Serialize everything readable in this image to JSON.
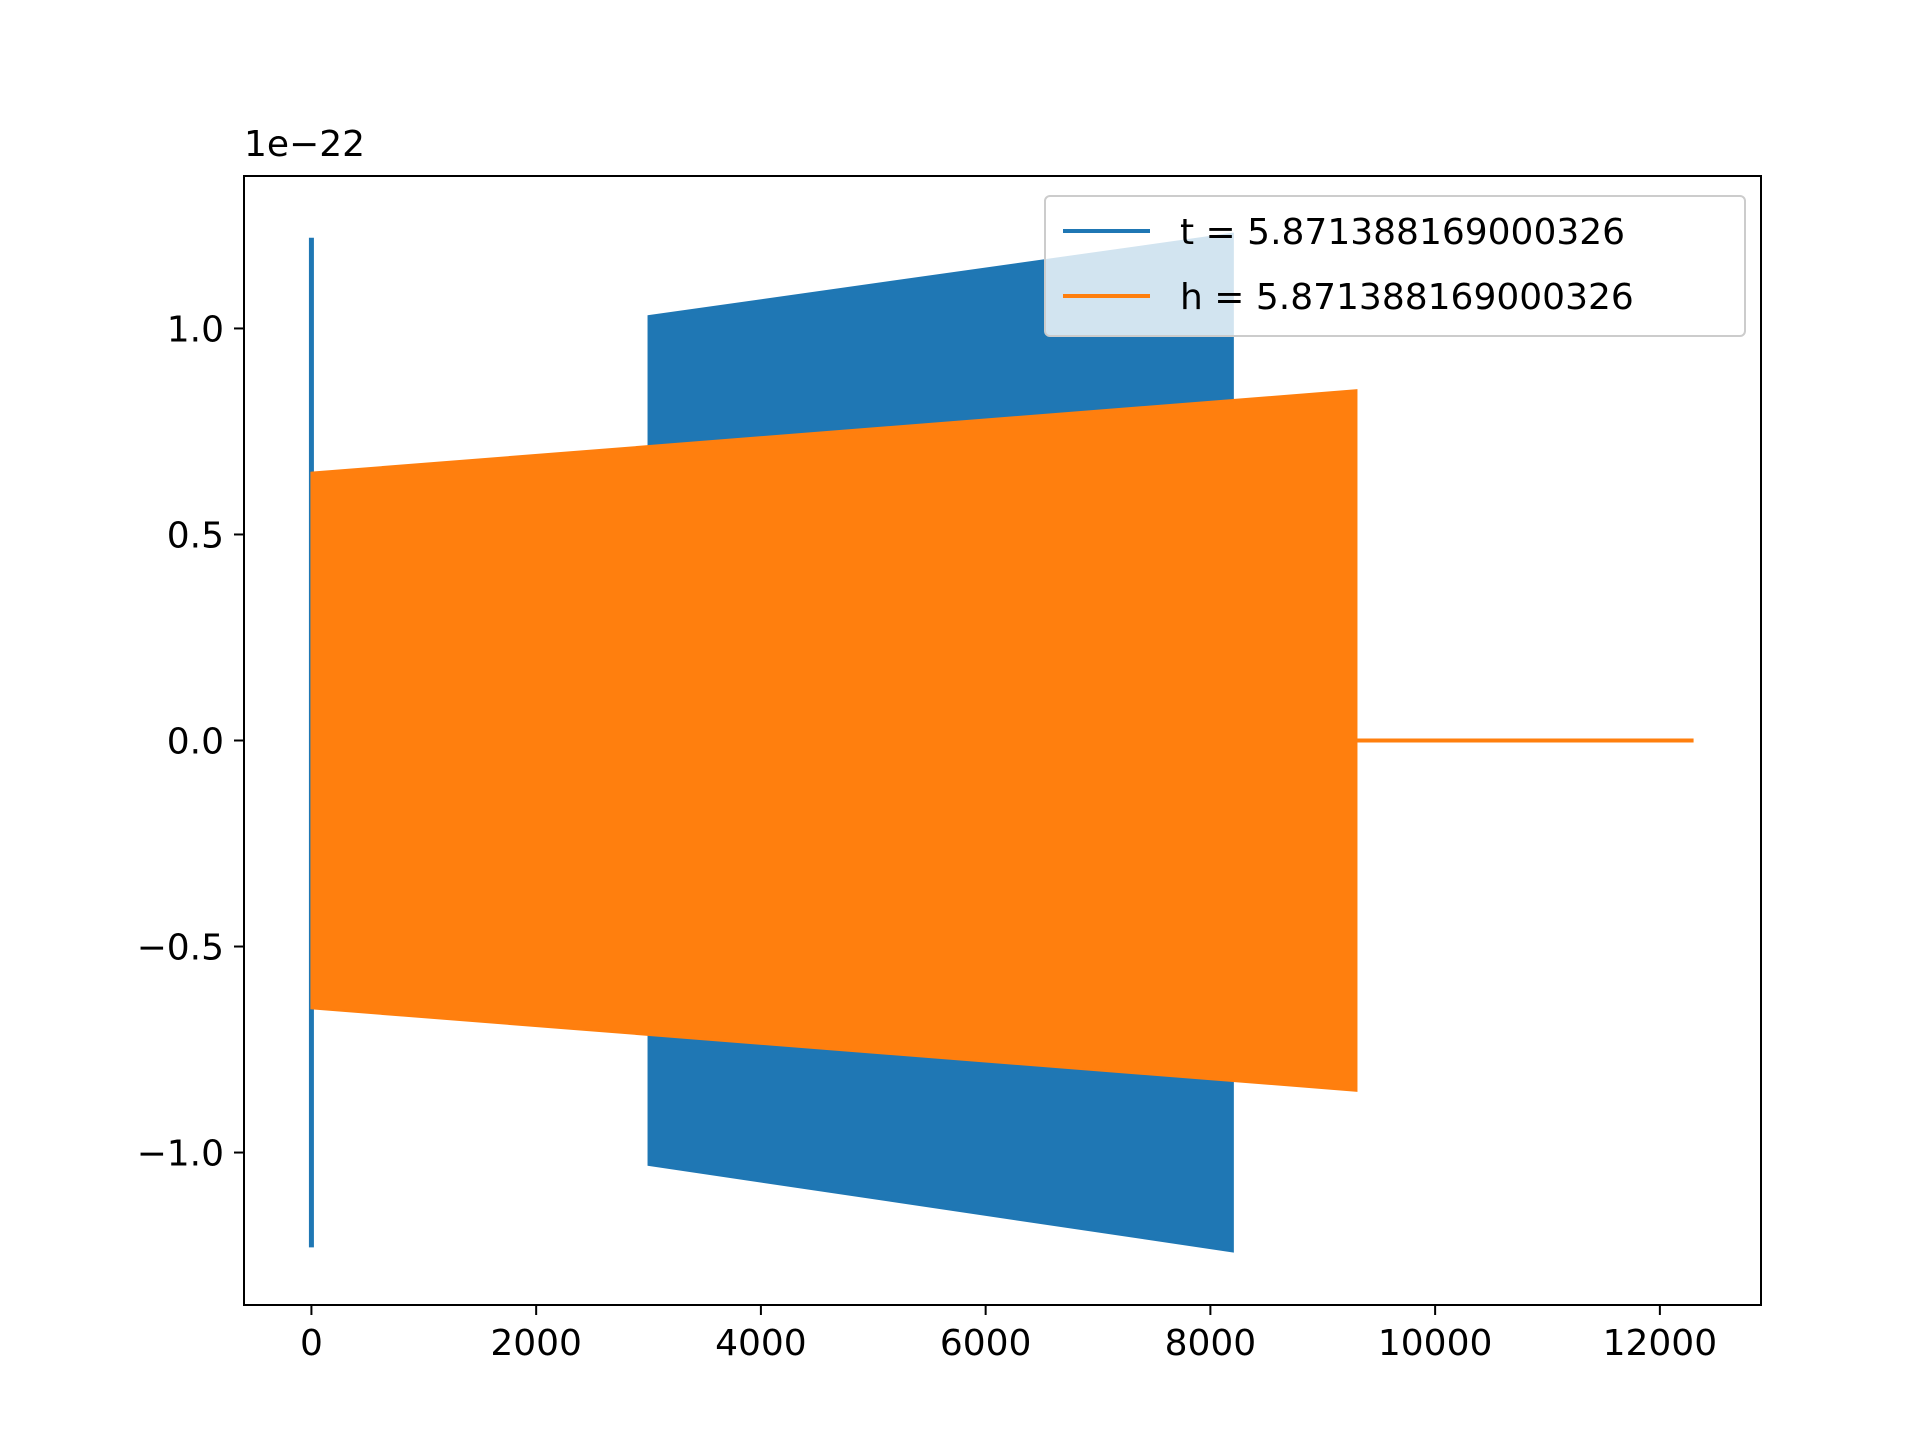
{
  "chart_data": {
    "type": "line",
    "title": "",
    "xlabel": "",
    "ylabel": "",
    "y_offset_label": "1e−22",
    "xlim": [
      -600,
      12900
    ],
    "ylim": [
      -1.37,
      1.37
    ],
    "x_ticks": [
      {
        "value": 0,
        "label": "0"
      },
      {
        "value": 2000,
        "label": "2000"
      },
      {
        "value": 4000,
        "label": "4000"
      },
      {
        "value": 6000,
        "label": "6000"
      },
      {
        "value": 8000,
        "label": "8000"
      },
      {
        "value": 10000,
        "label": "10000"
      },
      {
        "value": 12000,
        "label": "12000"
      }
    ],
    "y_ticks": [
      {
        "value": -1.0,
        "label": "−1.0"
      },
      {
        "value": -0.5,
        "label": "−0.5"
      },
      {
        "value": 0.0,
        "label": "0.0"
      },
      {
        "value": 0.5,
        "label": "0.5"
      },
      {
        "value": 1.0,
        "label": "1.0"
      }
    ],
    "grid": false,
    "legend_position": "top-right",
    "series": [
      {
        "name": "t = 5.871388169000326",
        "color": "#1f77b4",
        "description": "oscillating signal envelope (dense oscillation fills between upper and lower)",
        "spike": {
          "x": 0,
          "upper": 1.22,
          "lower": -1.23
        },
        "band": {
          "x": [
            3000,
            8200
          ],
          "upper": [
            1.03,
            1.23
          ],
          "lower": [
            -1.03,
            -1.24
          ]
        }
      },
      {
        "name": "h = 5.871388169000326",
        "color": "#ff7f0e",
        "description": "oscillating signal envelope, then flat zero tail",
        "band": {
          "x": [
            0,
            9300
          ],
          "upper": [
            0.65,
            0.85
          ],
          "lower": [
            -0.65,
            -0.85
          ]
        },
        "tail": {
          "x": [
            9300,
            12300
          ],
          "y": 0.0
        }
      }
    ]
  }
}
